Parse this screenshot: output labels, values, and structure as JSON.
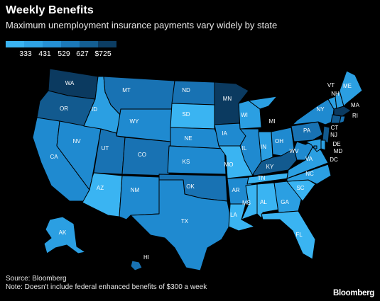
{
  "title": "Weekly Benefits",
  "subtitle": "Maximum unemployment insurance payments vary widely by state",
  "legend": {
    "labels": [
      "333",
      "431",
      "529",
      "627",
      "$725"
    ],
    "colors": [
      "#3ab4f2",
      "#2fa2e3",
      "#2590d4",
      "#1b79b9",
      "#145f93",
      "#0c3d63"
    ]
  },
  "colors": {
    "c1": "#3ab4f2",
    "c2": "#2b9fe2",
    "c3": "#1f8ad0",
    "c4": "#1872b3",
    "c5": "#125a8f",
    "c6": "#0b3a60"
  },
  "states": [
    {
      "abbr": "WA",
      "level": 6
    },
    {
      "abbr": "OR",
      "level": 5
    },
    {
      "abbr": "CA",
      "level": 3
    },
    {
      "abbr": "NV",
      "level": 3
    },
    {
      "abbr": "ID",
      "level": 2
    },
    {
      "abbr": "MT",
      "level": 4
    },
    {
      "abbr": "WY",
      "level": 3
    },
    {
      "abbr": "UT",
      "level": 4
    },
    {
      "abbr": "AZ",
      "level": 1
    },
    {
      "abbr": "CO",
      "level": 4
    },
    {
      "abbr": "NM",
      "level": 3
    },
    {
      "abbr": "ND",
      "level": 4
    },
    {
      "abbr": "SD",
      "level": 1
    },
    {
      "abbr": "NE",
      "level": 3
    },
    {
      "abbr": "KS",
      "level": 3
    },
    {
      "abbr": "OK",
      "level": 4
    },
    {
      "abbr": "TX",
      "level": 3
    },
    {
      "abbr": "MN",
      "level": 6
    },
    {
      "abbr": "IA",
      "level": 3
    },
    {
      "abbr": "MO",
      "level": 1
    },
    {
      "abbr": "AR",
      "level": 3
    },
    {
      "abbr": "LA",
      "level": 1
    },
    {
      "abbr": "WI",
      "level": 2
    },
    {
      "abbr": "IL",
      "level": 3
    },
    {
      "abbr": "MI",
      "level": 2
    },
    {
      "abbr": "IN",
      "level": 2
    },
    {
      "abbr": "OH",
      "level": 3
    },
    {
      "abbr": "KY",
      "level": 5
    },
    {
      "abbr": "TN",
      "level": 1
    },
    {
      "abbr": "MS",
      "level": 1
    },
    {
      "abbr": "AL",
      "level": 1
    },
    {
      "abbr": "GA",
      "level": 2
    },
    {
      "abbr": "FL",
      "level": 1
    },
    {
      "abbr": "SC",
      "level": 1
    },
    {
      "abbr": "NC",
      "level": 2
    },
    {
      "abbr": "VA",
      "level": 2
    },
    {
      "abbr": "WV",
      "level": 3
    },
    {
      "abbr": "PA",
      "level": 4
    },
    {
      "abbr": "NY",
      "level": 3
    },
    {
      "abbr": "VT",
      "level": 2
    },
    {
      "abbr": "NH",
      "level": 2
    },
    {
      "abbr": "ME",
      "level": 2
    },
    {
      "abbr": "MA",
      "level": 6
    },
    {
      "abbr": "CT",
      "level": 5
    },
    {
      "abbr": "RI",
      "level": 4
    },
    {
      "abbr": "NJ",
      "level": 5
    },
    {
      "abbr": "DE",
      "level": 2
    },
    {
      "abbr": "MD",
      "level": 2
    },
    {
      "abbr": "DC",
      "level": 3
    },
    {
      "abbr": "AK",
      "level": 2
    },
    {
      "abbr": "HI",
      "level": 4
    }
  ],
  "source": "Source: Bloomberg",
  "note": "Note: Doesn't include federal enhanced benefits of $300 a week",
  "brand": "Bloomberg"
}
